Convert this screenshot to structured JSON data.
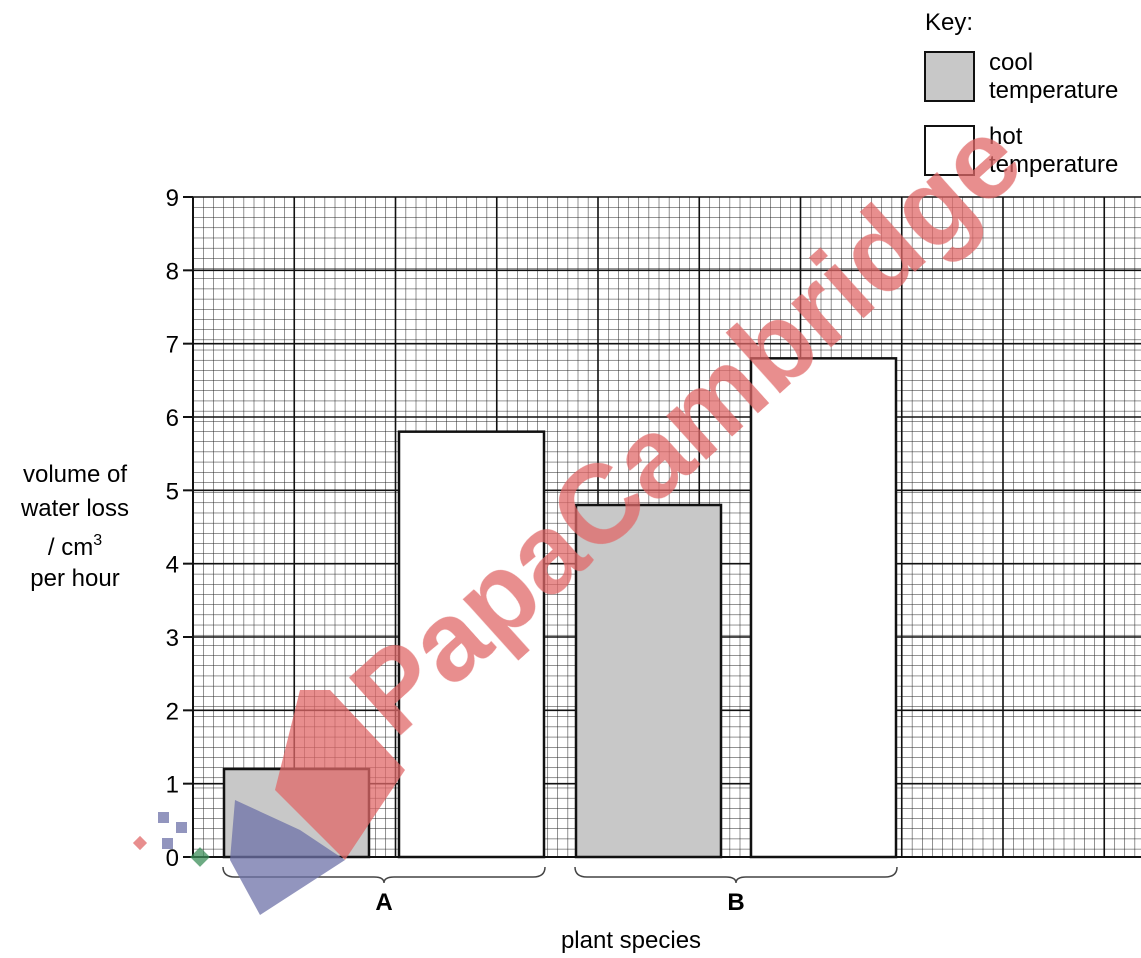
{
  "chart_data": {
    "type": "bar",
    "categories": [
      "A",
      "B"
    ],
    "series": [
      {
        "name": "cool temperature",
        "values": [
          1.2,
          4.8
        ],
        "color": "#c8c8c8"
      },
      {
        "name": "hot temperature",
        "values": [
          5.8,
          6.8
        ],
        "color": "#ffffff"
      }
    ],
    "xlabel": "plant species",
    "ylabel": [
      "volume of",
      "water loss",
      "/ cm",
      "3",
      "per hour"
    ],
    "ylim": [
      0,
      9
    ],
    "yticks": [
      "0",
      "1",
      "2",
      "3",
      "4",
      "5",
      "6",
      "7",
      "8",
      "9"
    ],
    "grid": true,
    "legend": {
      "title": "Key:",
      "placement": "top-right"
    }
  },
  "legend_labels": [
    [
      "cool",
      "temperature"
    ],
    [
      "hot",
      "temperature"
    ]
  ],
  "watermark": {
    "text": "PapaCambridge"
  }
}
